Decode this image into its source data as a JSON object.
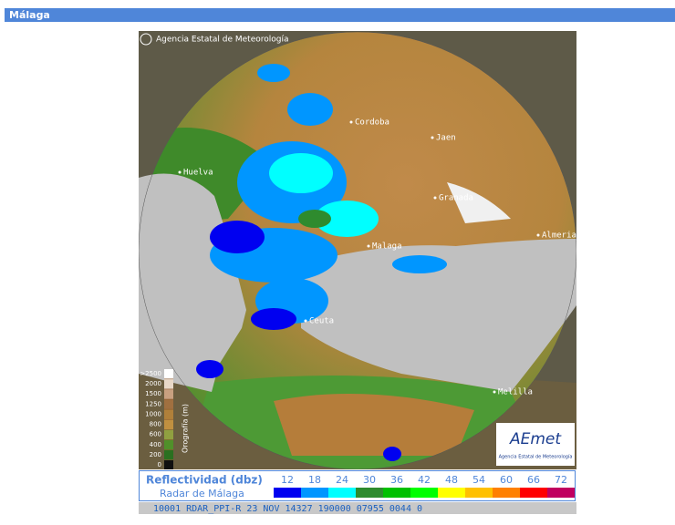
{
  "header": {
    "title": "Málaga"
  },
  "map": {
    "credit": "Agencia Estatal de Meteorología",
    "places": [
      "Cordoba",
      "Jaen",
      "Huelva",
      "Granada",
      "Malaga",
      "Almeria",
      "Ceuta",
      "Melilla"
    ],
    "orography": {
      "title": "Orografía (m)",
      "labels": [
        ">2500",
        "2000",
        "1500",
        "1250",
        "1000",
        "800",
        "600",
        "400",
        "200",
        "0"
      ]
    },
    "logo": {
      "name": "AEmet",
      "subtitle": "Agencia Estatal de Meteorología"
    }
  },
  "legend": {
    "title": "Reflectividad (dbz)",
    "radar": "Radar de Málaga",
    "levels": [
      {
        "value": 12,
        "color": "#0000f0"
      },
      {
        "value": 18,
        "color": "#0096ff"
      },
      {
        "value": 24,
        "color": "#00ffff"
      },
      {
        "value": 30,
        "color": "#2e8b2e"
      },
      {
        "value": 36,
        "color": "#00c000"
      },
      {
        "value": 42,
        "color": "#00ff00"
      },
      {
        "value": 48,
        "color": "#ffff00"
      },
      {
        "value": 54,
        "color": "#ffc000"
      },
      {
        "value": 60,
        "color": "#ff8000"
      },
      {
        "value": 66,
        "color": "#ff0000"
      },
      {
        "value": 72,
        "color": "#c00060"
      }
    ]
  },
  "status": "10001 RDAR_PPI-R   23 NOV 14327 190000 07955 0044 0"
}
